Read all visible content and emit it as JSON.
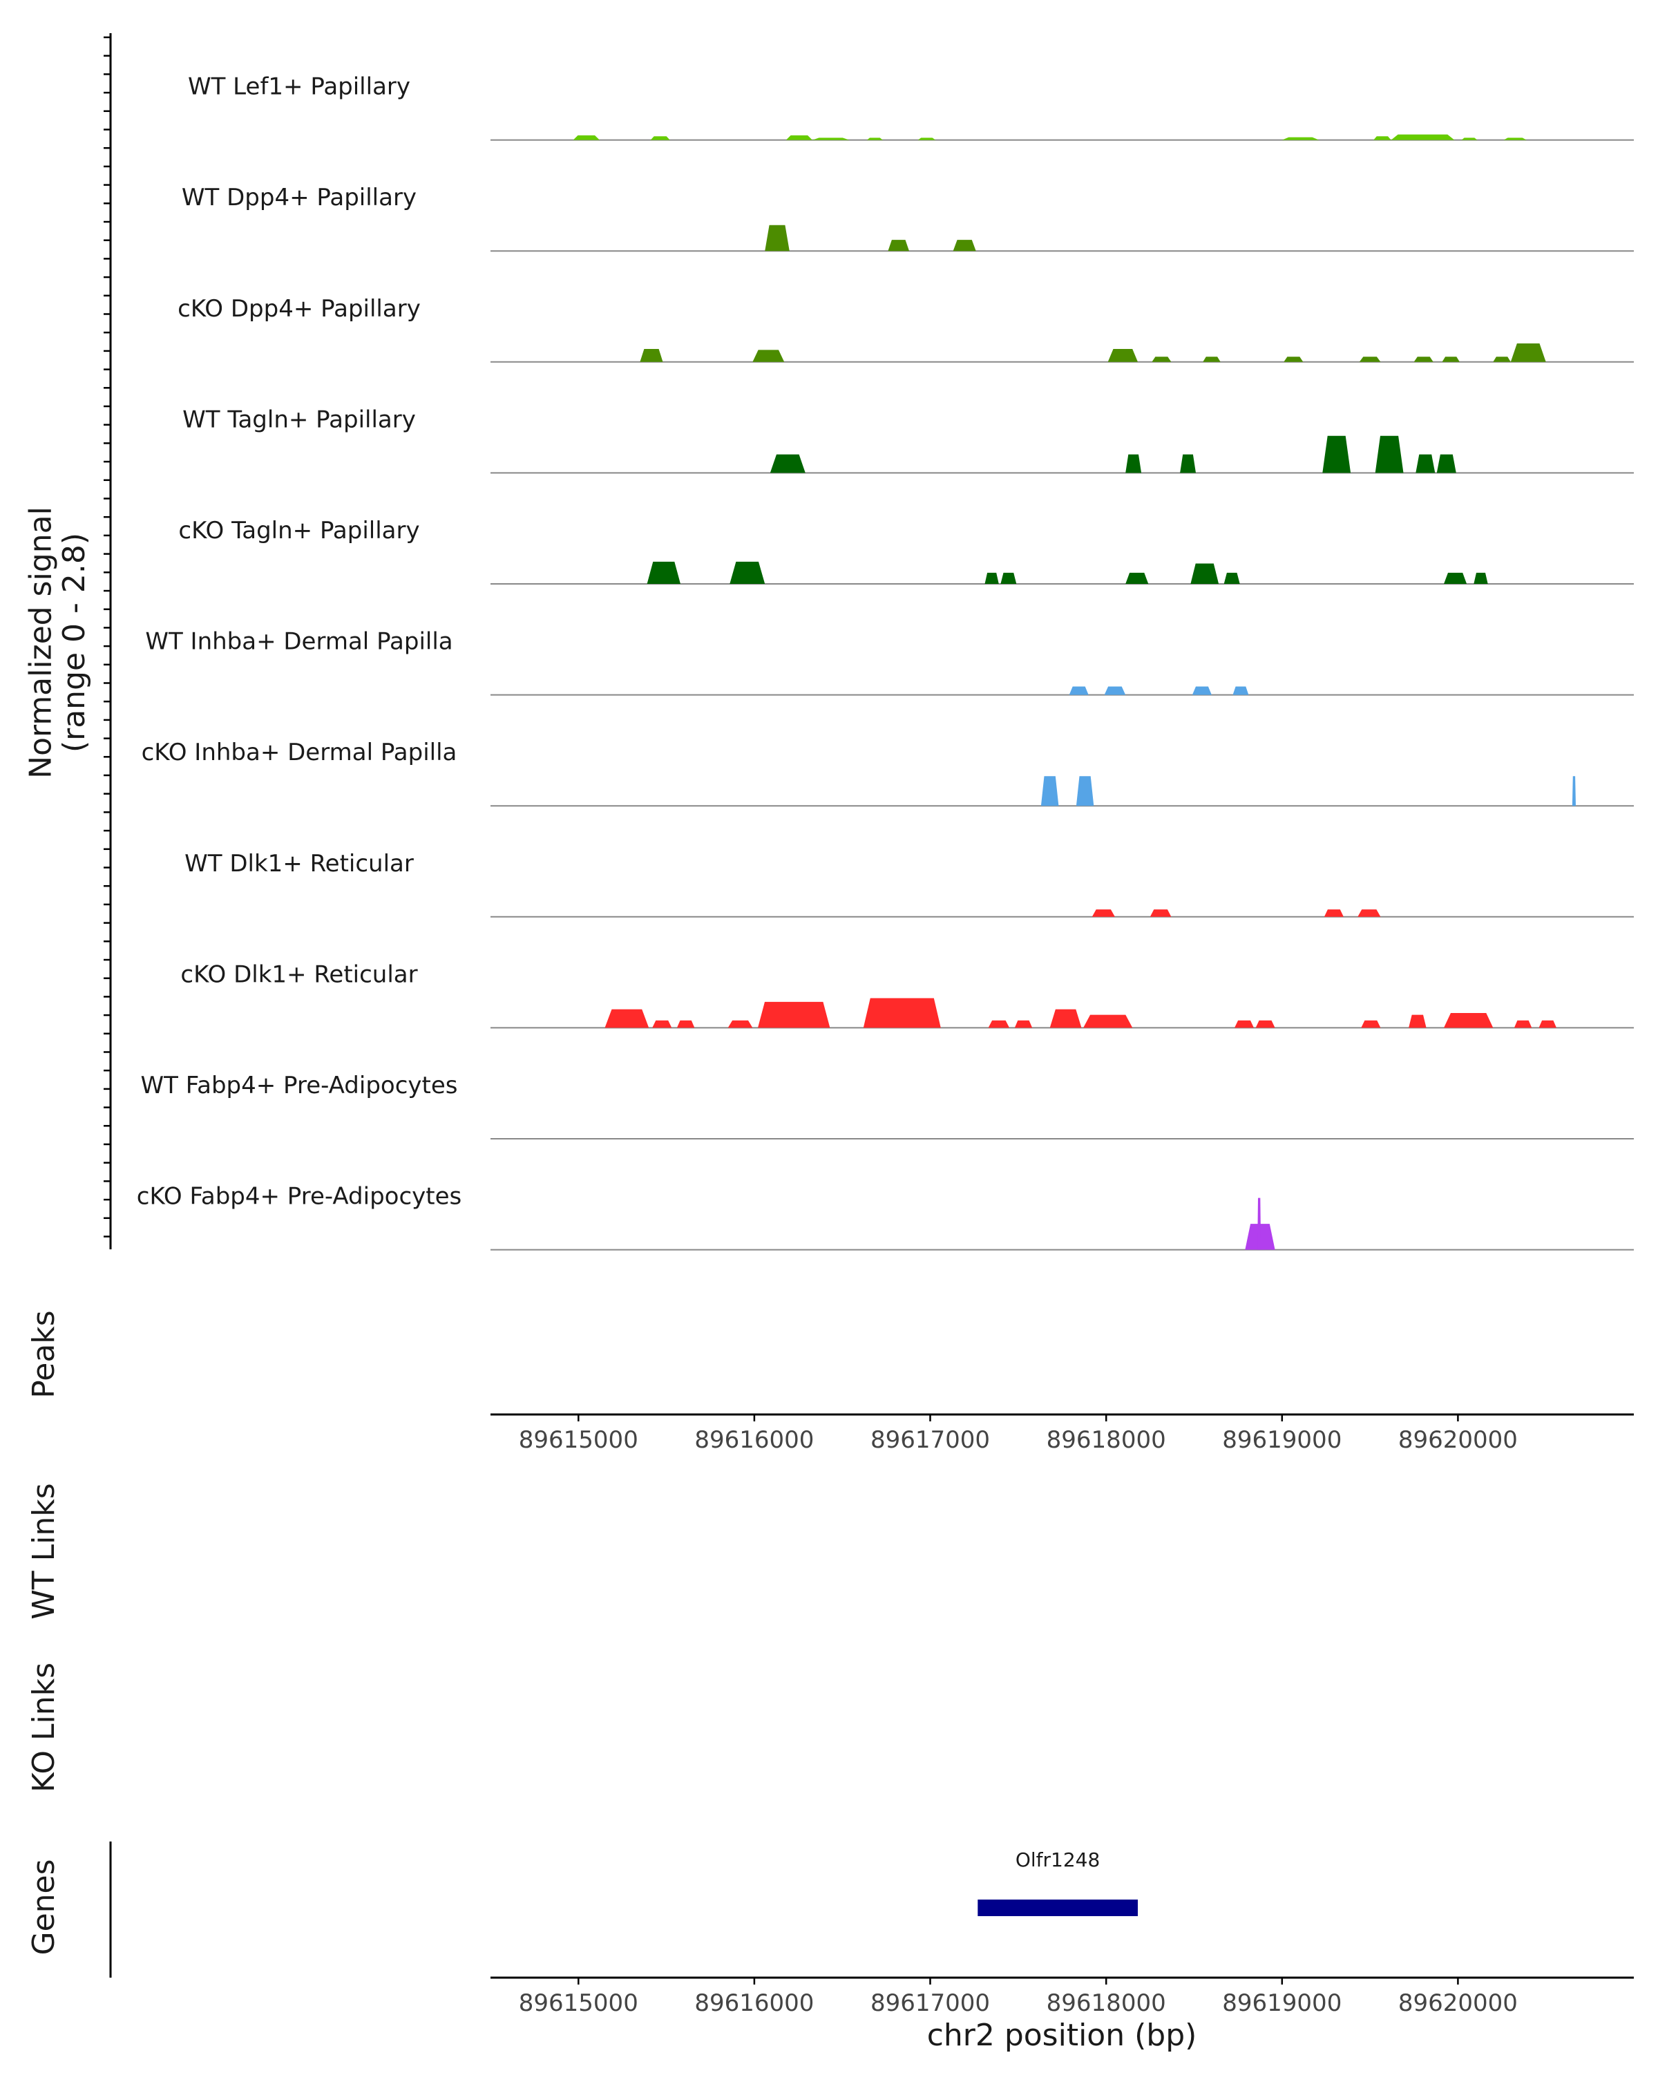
{
  "chart_data": {
    "type": "area",
    "title": "",
    "ylabel": "Normalized signal\n(range 0 - 2.8)",
    "yrange": [
      0,
      2.8
    ],
    "xlabel": "chr2 position (bp)",
    "xlim": [
      89614500,
      89621000
    ],
    "xticks": [
      89615000,
      89616000,
      89617000,
      89618000,
      89619000,
      89620000
    ],
    "xtick_labels": [
      "89615000",
      "89616000",
      "89617000",
      "89618000",
      "89619000",
      "89620000"
    ],
    "tracks": [
      {
        "name": "WT Lef1+ Papillary",
        "color": "#66CC00",
        "peaks": [
          [
            89614970,
            89615120,
            0.25
          ],
          [
            89615410,
            89615520,
            0.2
          ],
          [
            89616180,
            89616330,
            0.25
          ],
          [
            89616330,
            89616540,
            0.12
          ],
          [
            89616640,
            89616730,
            0.12
          ],
          [
            89616930,
            89617030,
            0.12
          ],
          [
            89619000,
            89619210,
            0.15
          ],
          [
            89619520,
            89619620,
            0.2
          ],
          [
            89619620,
            89619980,
            0.3
          ],
          [
            89620020,
            89620110,
            0.12
          ],
          [
            89620260,
            89620390,
            0.12
          ]
        ]
      },
      {
        "name": "WT Dpp4+ Papillary",
        "color": "#4C8C00",
        "peaks": [
          [
            89616060,
            89616200,
            1.4
          ],
          [
            89616760,
            89616880,
            0.6
          ],
          [
            89617130,
            89617260,
            0.6
          ]
        ]
      },
      {
        "name": "cKO Dpp4+ Papillary",
        "color": "#4C8C00",
        "peaks": [
          [
            89615350,
            89615480,
            0.7
          ],
          [
            89615990,
            89616170,
            0.65
          ],
          [
            89618010,
            89618180,
            0.7
          ],
          [
            89618260,
            89618370,
            0.28
          ],
          [
            89618550,
            89618650,
            0.28
          ],
          [
            89619010,
            89619120,
            0.28
          ],
          [
            89619440,
            89619560,
            0.28
          ],
          [
            89619750,
            89619860,
            0.28
          ],
          [
            89619910,
            89620010,
            0.28
          ],
          [
            89620200,
            89620300,
            0.28
          ],
          [
            89620300,
            89620500,
            1.0
          ]
        ]
      },
      {
        "name": "WT Tagln+ Papillary",
        "color": "#006400",
        "peaks": [
          [
            89616090,
            89616290,
            1.0
          ],
          [
            89618110,
            89618200,
            1.0
          ],
          [
            89618420,
            89618510,
            1.0
          ],
          [
            89619230,
            89619390,
            2.0
          ],
          [
            89619530,
            89619690,
            2.0
          ],
          [
            89619760,
            89619870,
            1.0
          ],
          [
            89619880,
            89619990,
            1.0
          ]
        ]
      },
      {
        "name": "cKO Tagln+ Papillary",
        "color": "#006400",
        "peaks": [
          [
            89615390,
            89615580,
            1.2
          ],
          [
            89615860,
            89616060,
            1.2
          ],
          [
            89617310,
            89617390,
            0.6
          ],
          [
            89617400,
            89617490,
            0.6
          ],
          [
            89618110,
            89618240,
            0.6
          ],
          [
            89618480,
            89618640,
            1.1
          ],
          [
            89618670,
            89618760,
            0.6
          ],
          [
            89619920,
            89620050,
            0.6
          ],
          [
            89620090,
            89620170,
            0.6
          ]
        ]
      },
      {
        "name": "WT Inhba+ Dermal Papilla",
        "color": "#56A4E6",
        "peaks": [
          [
            89617790,
            89617900,
            0.45
          ],
          [
            89617990,
            89618110,
            0.45
          ],
          [
            89618490,
            89618600,
            0.45
          ],
          [
            89618720,
            89618810,
            0.45
          ]
        ]
      },
      {
        "name": "cKO Inhba+ Dermal Papilla",
        "color": "#56A4E6",
        "peaks": [
          [
            89617630,
            89617730,
            1.6
          ],
          [
            89617830,
            89617930,
            1.6
          ],
          [
            89620650,
            89620670,
            1.6
          ]
        ]
      },
      {
        "name": "WT Dlk1+ Reticular",
        "color": "#FF2A2A",
        "peaks": [
          [
            89617920,
            89618050,
            0.4
          ],
          [
            89618250,
            89618370,
            0.4
          ],
          [
            89619240,
            89619350,
            0.4
          ],
          [
            89619430,
            89619560,
            0.4
          ]
        ]
      },
      {
        "name": "cKO Dlk1+ Reticular",
        "color": "#FF2A2A",
        "peaks": [
          [
            89615150,
            89615400,
            1.0
          ],
          [
            89615420,
            89615530,
            0.4
          ],
          [
            89615560,
            89615660,
            0.4
          ],
          [
            89615850,
            89615990,
            0.4
          ],
          [
            89616020,
            89616430,
            1.4
          ],
          [
            89616620,
            89617060,
            1.6
          ],
          [
            89617330,
            89617450,
            0.4
          ],
          [
            89617480,
            89617580,
            0.4
          ],
          [
            89617680,
            89617860,
            1.0
          ],
          [
            89617870,
            89618150,
            0.7
          ],
          [
            89618730,
            89618840,
            0.4
          ],
          [
            89618850,
            89618960,
            0.4
          ],
          [
            89619450,
            89619560,
            0.4
          ],
          [
            89619720,
            89619820,
            0.7
          ],
          [
            89619920,
            89620200,
            0.8
          ],
          [
            89620320,
            89620420,
            0.4
          ],
          [
            89620460,
            89620560,
            0.4
          ]
        ]
      },
      {
        "name": "WT Fabp4+ Pre-Adipocytes",
        "color": "#9B30FF",
        "peaks": []
      },
      {
        "name": "cKO Fabp4+ Pre-Adipocytes",
        "color": "#B23FEE",
        "peaks": [
          [
            89618790,
            89618960,
            1.4
          ],
          [
            89618860,
            89618880,
            2.8
          ]
        ]
      }
    ],
    "panels": {
      "peaks": "Peaks",
      "wt_links": "WT Links",
      "ko_links": "KO Links",
      "genes": "Genes"
    },
    "genes": [
      {
        "name": "Olfr1248",
        "start": 89617270,
        "end": 89618180,
        "color": "#00008B"
      }
    ]
  }
}
